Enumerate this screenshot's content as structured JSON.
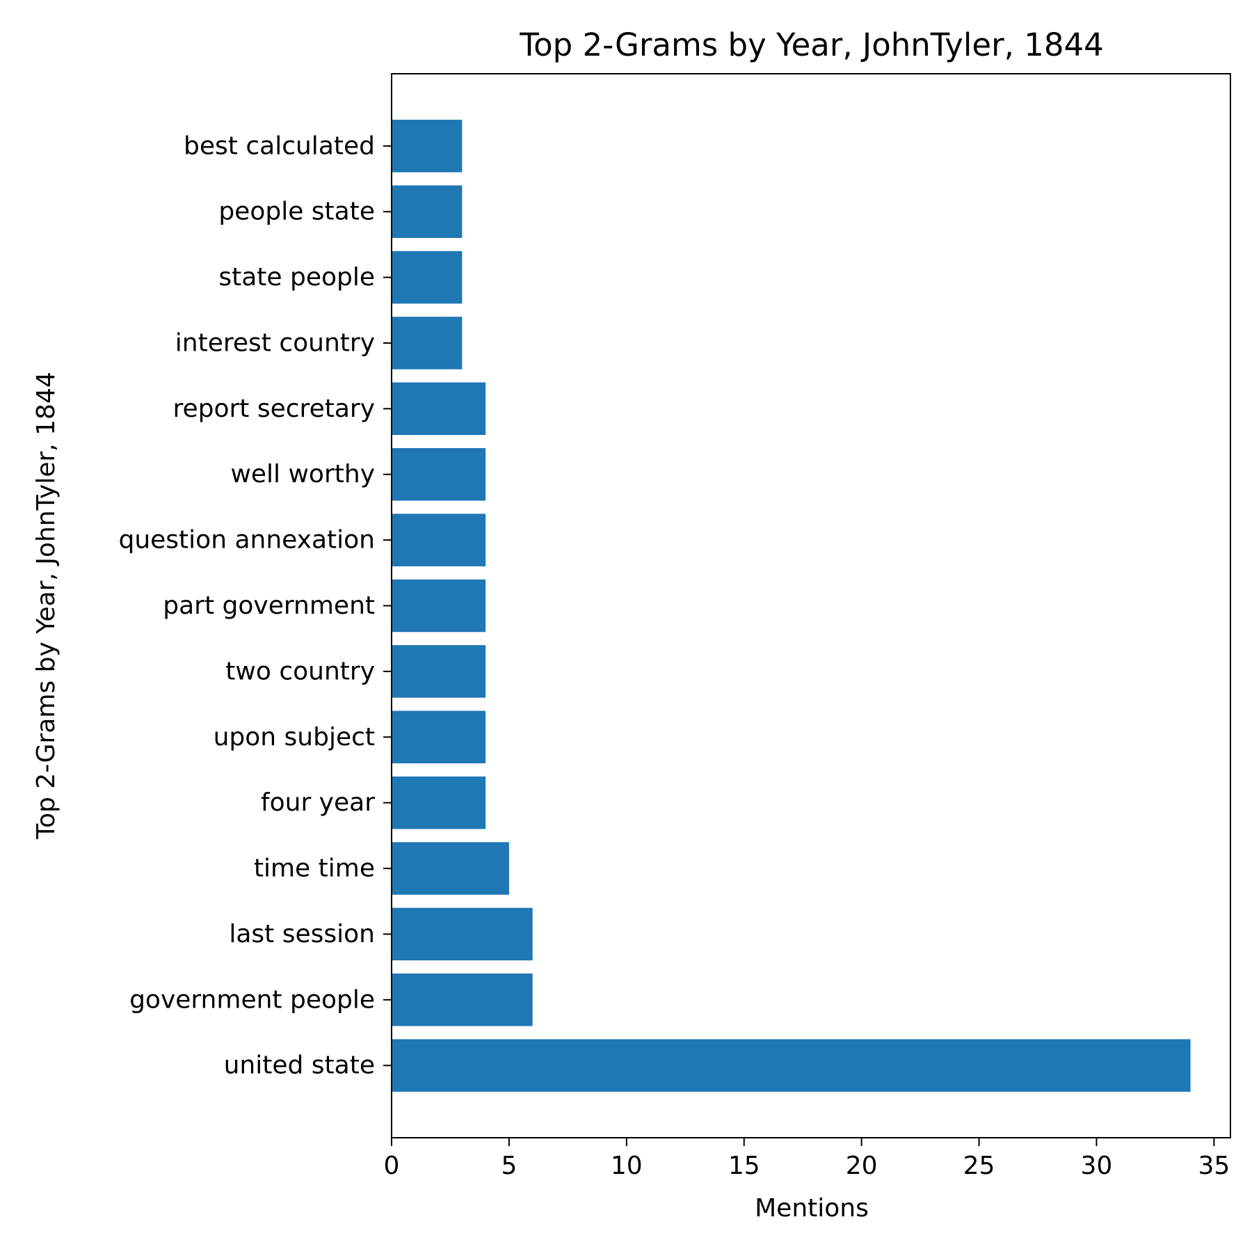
{
  "chart_data": {
    "type": "bar",
    "orientation": "horizontal",
    "title": "Top 2-Grams by Year, JohnTyler, 1844",
    "xlabel": "Mentions",
    "ylabel": "Top 2-Grams by Year, JohnTyler, 1844",
    "categories": [
      "united state",
      "government people",
      "last session",
      "time time",
      "four year",
      "upon subject",
      "two country",
      "part government",
      "question annexation",
      "well worthy",
      "report secretary",
      "interest country",
      "state people",
      "people state",
      "best calculated"
    ],
    "values": [
      34,
      6,
      6,
      5,
      4,
      4,
      4,
      4,
      4,
      4,
      4,
      3,
      3,
      3,
      3
    ],
    "xlim": [
      0,
      35.7
    ],
    "xticks": [
      0,
      5,
      10,
      15,
      20,
      25,
      30,
      35
    ],
    "bar_color": "#1f77b4",
    "grid": false,
    "legend": "none"
  }
}
